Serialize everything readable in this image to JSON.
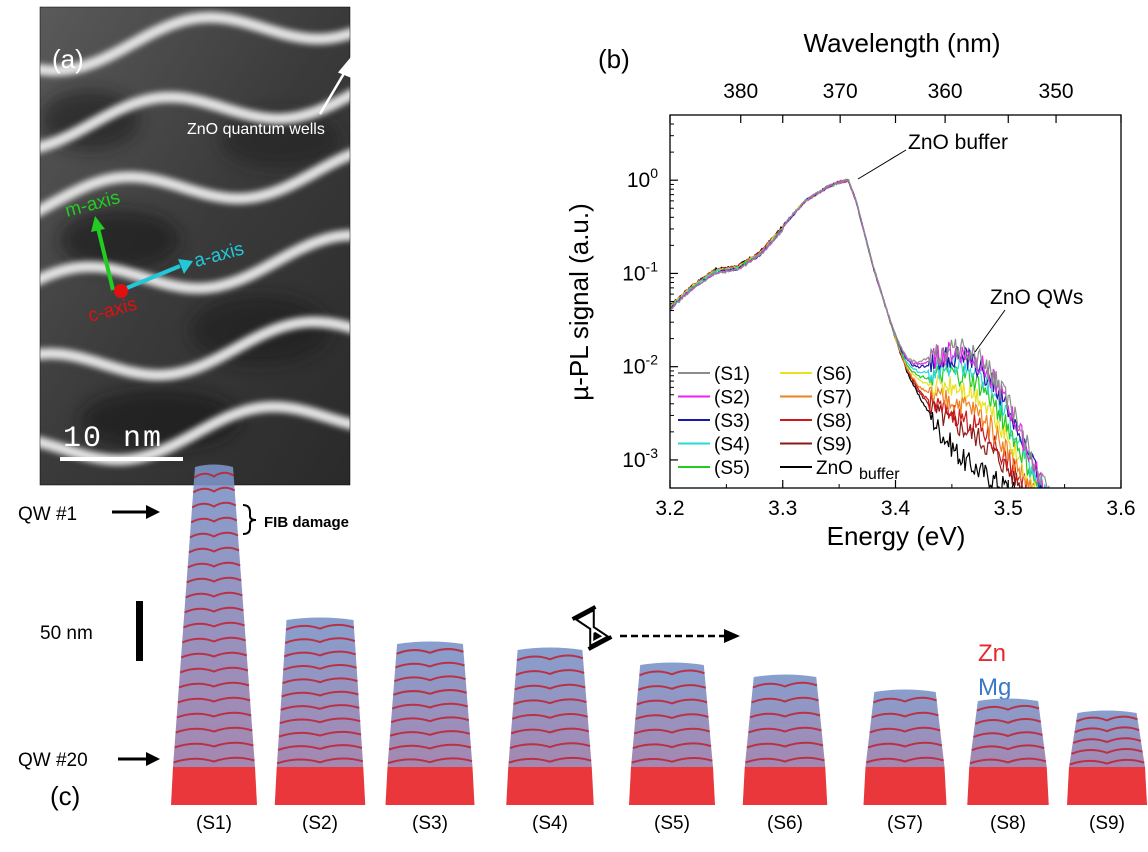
{
  "panel_a": {
    "label": "(a)",
    "annotation": "ZnO quantum wells",
    "axes": {
      "m": "m-axis",
      "a": "a-axis",
      "c": "c-axis"
    },
    "scalebar": "10 nm"
  },
  "panel_b": {
    "label": "(b)"
  },
  "panel_c": {
    "label": "(c)",
    "qw_top": "QW #1",
    "qw_bottom": "QW #20",
    "fib_label": "FIB damage",
    "scalebar": "50 nm",
    "zn_label": "Zn",
    "mg_label": "Mg",
    "samples": [
      "(S1)",
      "(S2)",
      "(S3)",
      "(S4)",
      "(S5)",
      "(S6)",
      "(S7)",
      "(S8)",
      "(S9)"
    ],
    "relative_heights": [
      1.0,
      0.49,
      0.41,
      0.39,
      0.34,
      0.3,
      0.25,
      0.22,
      0.18
    ]
  },
  "colors": {
    "zn": "#e8262b",
    "mg": "#3a78c8",
    "m_axis": "#22cc22",
    "a_axis": "#22c8d8",
    "c_axis": "#e01010"
  },
  "chart_data": {
    "type": "line",
    "xlabel": "Energy (eV)",
    "ylabel": "µ-PL signal (a.u.)",
    "top_xlabel": "Wavelength (nm)",
    "xlim": [
      3.2,
      3.6
    ],
    "ylim": [
      0.0005,
      5
    ],
    "yscale": "log",
    "xticks": [
      "3.2",
      "3.3",
      "3.4",
      "3.5",
      "3.6"
    ],
    "top_ticks": [
      380,
      370,
      360,
      350
    ],
    "annotations": [
      "ZnO buffer",
      "ZnO QWs"
    ],
    "legend_position": "bottom-left",
    "buffer_curve": {
      "x": [
        3.2,
        3.22,
        3.24,
        3.26,
        3.28,
        3.3,
        3.32,
        3.34,
        3.35,
        3.358,
        3.365,
        3.38,
        3.4,
        3.41,
        3.42,
        3.44,
        3.46,
        3.48,
        3.5
      ],
      "y": [
        0.045,
        0.075,
        0.11,
        0.12,
        0.17,
        0.32,
        0.6,
        0.85,
        0.95,
        1.0,
        0.6,
        0.12,
        0.02,
        0.009,
        0.005,
        0.002,
        0.001,
        0.0007,
        0.0005
      ]
    },
    "series": [
      {
        "name": "(S1)",
        "color": "#8c8c8c",
        "qw_peak": 0.0145
      },
      {
        "name": "(S2)",
        "color": "#ee22ee",
        "qw_peak": 0.013
      },
      {
        "name": "(S3)",
        "color": "#1a1aa8",
        "qw_peak": 0.0115
      },
      {
        "name": "(S4)",
        "color": "#2ad8d8",
        "qw_peak": 0.009
      },
      {
        "name": "(S5)",
        "color": "#22cc22",
        "qw_peak": 0.007
      },
      {
        "name": "(S6)",
        "color": "#e8e020",
        "qw_peak": 0.005
      },
      {
        "name": "(S7)",
        "color": "#f08020",
        "qw_peak": 0.003
      },
      {
        "name": "(S8)",
        "color": "#d01818",
        "qw_peak": 0.0018
      },
      {
        "name": "(S9)",
        "color": "#8a1a1a",
        "qw_peak": 0.0012
      },
      {
        "name": "ZnO buffer",
        "color": "#000000",
        "qw_peak": 0
      }
    ],
    "legend_items": [
      {
        "label": "(S1)",
        "sub": ""
      },
      {
        "label": "(S2)",
        "sub": ""
      },
      {
        "label": "(S3)",
        "sub": ""
      },
      {
        "label": "(S4)",
        "sub": ""
      },
      {
        "label": "(S5)",
        "sub": ""
      },
      {
        "label": "(S6)",
        "sub": ""
      },
      {
        "label": "(S7)",
        "sub": ""
      },
      {
        "label": "(S8)",
        "sub": ""
      },
      {
        "label": "(S9)",
        "sub": ""
      },
      {
        "label": "ZnO",
        "sub": "buffer"
      }
    ]
  }
}
